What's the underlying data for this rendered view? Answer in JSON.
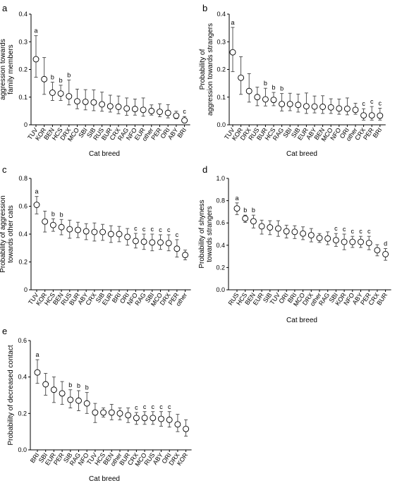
{
  "chart_data": [
    {
      "panel": "a",
      "type": "scatter",
      "ylabel": "Probability of aggression towards family members",
      "xlabel": "Cat breed",
      "ylim": [
        0,
        0.4
      ],
      "yticks": [
        "0",
        "0.1",
        "0.2",
        "0.3",
        "0.4"
      ],
      "categories": [
        "TUV",
        "KOR",
        "BEN",
        "HCS",
        "DRX",
        "MCO",
        "SBI",
        "SIB",
        "RUS",
        "BUR",
        "CRX",
        "RAG",
        "NFO",
        "EUR",
        "other",
        "PER",
        "ORI",
        "ABY",
        "BRI"
      ],
      "values": [
        0.237,
        0.165,
        0.116,
        0.113,
        0.103,
        0.085,
        0.083,
        0.081,
        0.074,
        0.067,
        0.065,
        0.059,
        0.057,
        0.054,
        0.05,
        0.047,
        0.043,
        0.033,
        0.016
      ],
      "upper": [
        0.322,
        0.243,
        0.154,
        0.143,
        0.162,
        0.129,
        0.127,
        0.126,
        0.118,
        0.107,
        0.104,
        0.097,
        0.093,
        0.097,
        0.072,
        0.076,
        0.073,
        0.049,
        0.03
      ],
      "lower": [
        0.172,
        0.11,
        0.088,
        0.088,
        0.072,
        0.058,
        0.054,
        0.051,
        0.049,
        0.046,
        0.04,
        0.034,
        0.035,
        0.031,
        0.035,
        0.029,
        0.025,
        0.022,
        0.007
      ],
      "labels": [
        "a",
        "",
        "b",
        "b",
        "b",
        "",
        "",
        "",
        "",
        "",
        "",
        "",
        "",
        "",
        "",
        "",
        "",
        "",
        "c"
      ]
    },
    {
      "panel": "b",
      "type": "scatter",
      "ylabel": "Probability of aggression towards strangers",
      "xlabel": "Cat breed",
      "ylim": [
        0,
        0.4
      ],
      "yticks": [
        "0.0",
        "0.1",
        "0.2",
        "0.3",
        "0.4"
      ],
      "categories": [
        "TUV",
        "KOR",
        "DRX",
        "RUS",
        "BUR",
        "HCS",
        "RAG",
        "SBI",
        "SIB",
        "EUR",
        "ABY",
        "BEN",
        "MCO",
        "NFO",
        "ORI",
        "other",
        "CRX",
        "PER",
        "BRI"
      ],
      "values": [
        0.262,
        0.17,
        0.122,
        0.1,
        0.092,
        0.09,
        0.075,
        0.075,
        0.072,
        0.067,
        0.066,
        0.065,
        0.063,
        0.059,
        0.058,
        0.054,
        0.034,
        0.034,
        0.033
      ],
      "upper": [
        0.352,
        0.246,
        0.185,
        0.136,
        0.132,
        0.117,
        0.113,
        0.114,
        0.111,
        0.115,
        0.104,
        0.105,
        0.094,
        0.093,
        0.097,
        0.078,
        0.058,
        0.066,
        0.06
      ],
      "lower": [
        0.192,
        0.11,
        0.082,
        0.069,
        0.068,
        0.069,
        0.05,
        0.051,
        0.046,
        0.041,
        0.043,
        0.041,
        0.041,
        0.038,
        0.036,
        0.038,
        0.017,
        0.017,
        0.017
      ],
      "labels": [
        "a",
        "",
        "",
        "",
        "b",
        "b",
        "b",
        "",
        "",
        "",
        "",
        "",
        "",
        "",
        "",
        "",
        "c",
        "c",
        "c"
      ]
    },
    {
      "panel": "c",
      "type": "scatter",
      "ylabel": "Probability of aggression towards other cats",
      "xlabel": "",
      "ylim": [
        0,
        0.8
      ],
      "yticks": [
        "0",
        "0.2",
        "0.4",
        "0.6",
        "0.8"
      ],
      "categories": [
        "TUV",
        "KOR",
        "HCS",
        "BEN",
        "RUS",
        "BUR",
        "ABY",
        "CRX",
        "SIB",
        "EUR",
        "BRI",
        "ORI",
        "NFO",
        "RAG",
        "SBI",
        "MCO",
        "DRX",
        "PER",
        "other"
      ],
      "values": [
        0.61,
        0.49,
        0.465,
        0.45,
        0.435,
        0.43,
        0.42,
        0.415,
        0.415,
        0.4,
        0.4,
        0.38,
        0.35,
        0.345,
        0.34,
        0.34,
        0.335,
        0.295,
        0.25
      ],
      "upper": [
        0.67,
        0.565,
        0.51,
        0.505,
        0.5,
        0.485,
        0.475,
        0.48,
        0.47,
        0.46,
        0.455,
        0.44,
        0.405,
        0.4,
        0.4,
        0.395,
        0.395,
        0.36,
        0.285
      ],
      "lower": [
        0.545,
        0.415,
        0.42,
        0.395,
        0.37,
        0.375,
        0.36,
        0.35,
        0.355,
        0.34,
        0.345,
        0.32,
        0.3,
        0.29,
        0.28,
        0.29,
        0.28,
        0.235,
        0.215
      ],
      "labels": [
        "a",
        "",
        "b",
        "b",
        "",
        "",
        "",
        "",
        "",
        "",
        "",
        "",
        "c",
        "c",
        "c",
        "c",
        "c",
        "c",
        ""
      ]
    },
    {
      "panel": "d",
      "type": "scatter",
      "ylabel": "Probability of shyness towards strangers",
      "xlabel": "Cat breed",
      "ylim": [
        0,
        1.0
      ],
      "yticks": [
        "0.0",
        "0.2",
        "0.4",
        "0.6",
        "0.8",
        "1.0"
      ],
      "categories": [
        "RUS",
        "HCS",
        "BEN",
        "EUR",
        "SIB",
        "TUV",
        "ORI",
        "BRI",
        "MCO",
        "DRX",
        "other",
        "RAG",
        "SBI",
        "KOR",
        "NFO",
        "ABY",
        "PER",
        "CRX",
        "BUR"
      ],
      "values": [
        0.73,
        0.64,
        0.615,
        0.57,
        0.56,
        0.55,
        0.525,
        0.52,
        0.505,
        0.49,
        0.465,
        0.46,
        0.445,
        0.43,
        0.43,
        0.43,
        0.42,
        0.355,
        0.32
      ],
      "upper": [
        0.78,
        0.67,
        0.67,
        0.625,
        0.62,
        0.62,
        0.58,
        0.575,
        0.565,
        0.55,
        0.505,
        0.52,
        0.505,
        0.5,
        0.48,
        0.48,
        0.48,
        0.405,
        0.37
      ],
      "lower": [
        0.675,
        0.605,
        0.555,
        0.5,
        0.495,
        0.48,
        0.465,
        0.46,
        0.45,
        0.43,
        0.425,
        0.405,
        0.39,
        0.36,
        0.38,
        0.38,
        0.36,
        0.305,
        0.265
      ],
      "labels": [
        "a",
        "b",
        "b",
        "",
        "",
        "",
        "",
        "",
        "",
        "",
        "",
        "",
        "c",
        "c",
        "c",
        "c",
        "c",
        "",
        "d"
      ]
    },
    {
      "panel": "e",
      "type": "scatter",
      "ylabel": "Probability of decreased contact",
      "xlabel": "Cat breed",
      "ylim": [
        0,
        0.6
      ],
      "yticks": [
        "0.0",
        "0.2",
        "0.4",
        "0.6"
      ],
      "categories": [
        "BRI",
        "SBI",
        "EUR",
        "PER",
        "SIB",
        "RAG",
        "NFO",
        "TUV",
        "HCS",
        "BEN",
        "other",
        "BUR",
        "CRX",
        "MCO",
        "RUS",
        "ABY",
        "ORI",
        "DRX",
        "KOR"
      ],
      "values": [
        0.425,
        0.36,
        0.33,
        0.31,
        0.275,
        0.27,
        0.255,
        0.205,
        0.205,
        0.205,
        0.2,
        0.19,
        0.175,
        0.175,
        0.175,
        0.17,
        0.165,
        0.14,
        0.115
      ],
      "upper": [
        0.495,
        0.42,
        0.4,
        0.375,
        0.33,
        0.325,
        0.315,
        0.255,
        0.23,
        0.25,
        0.23,
        0.23,
        0.205,
        0.21,
        0.21,
        0.21,
        0.21,
        0.195,
        0.165
      ],
      "lower": [
        0.365,
        0.3,
        0.26,
        0.25,
        0.23,
        0.215,
        0.2,
        0.15,
        0.18,
        0.165,
        0.165,
        0.15,
        0.14,
        0.14,
        0.14,
        0.13,
        0.125,
        0.1,
        0.075
      ],
      "labels": [
        "a",
        "",
        "",
        "",
        "b",
        "b",
        "b",
        "",
        "",
        "",
        "",
        "",
        "c",
        "c",
        "c",
        "c",
        "c",
        "",
        ""
      ]
    }
  ]
}
